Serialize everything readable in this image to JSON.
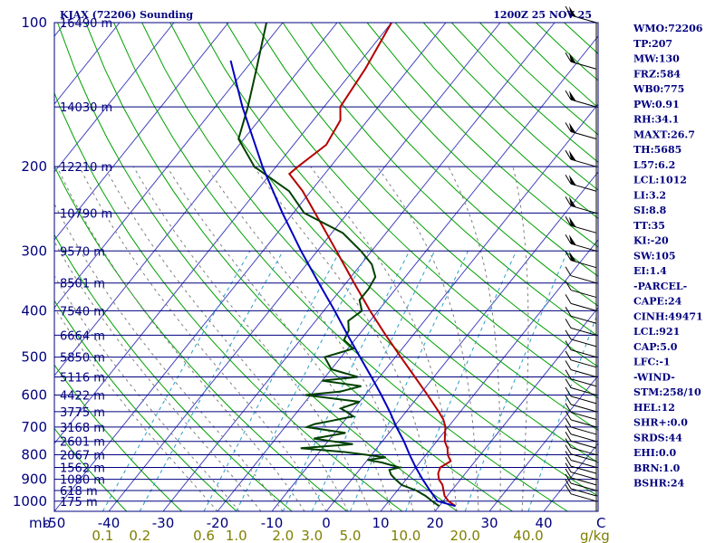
{
  "header": {
    "title": "KJAX (72206) Sounding",
    "datetime": "1200Z 25 NOV 25"
  },
  "indices": [
    "WMO:72206",
    "TP:207",
    "MW:130",
    "FRZ:584",
    "WB0:775",
    "PW:0.91",
    "RH:34.1",
    "MAXT:26.7",
    "TH:5685",
    "L57:6.2",
    "LCL:1012",
    "LI:3.2",
    "SI:8.8",
    "TT:35",
    "KI:-20",
    "SW:105",
    "EI:1.4",
    "-PARCEL-",
    "CAPE:24",
    "CINH:49471",
    "LCL:921",
    "CAP:5.0",
    "LFC:-1",
    "-WIND-",
    "STM:258/10",
    "HEL:12",
    "SHR+:0.0",
    "SRDS:44",
    "EHI:0.0",
    "BRN:1.0",
    "BSHR:24"
  ],
  "colors": {
    "isobar": "#00007f",
    "isotherm": "#3f3fbf",
    "dry_adiabat": "#00a000",
    "moist_adiabat": "#7f7f7f",
    "mixing_ratio": "#2aa0c8",
    "temperature": "#b40000",
    "dewpoint": "#004000",
    "parcel": "#0000c0",
    "label_navy": "#00007f",
    "label_olive": "#7f7f00"
  },
  "chart_data": {
    "type": "skew-t log-p sounding",
    "pressure_unit_label": "mb",
    "temperature_unit_label": "C",
    "mixing_ratio_unit_label": "g/kg",
    "pressure_ticks": [
      100,
      200,
      300,
      400,
      500,
      600,
      700,
      800,
      900,
      1000
    ],
    "temperature_ticks": [
      -50,
      -40,
      -30,
      -20,
      -10,
      0,
      10,
      20,
      30,
      40
    ],
    "temperature_tick_labels": [
      "-50",
      "-40",
      "-30",
      "-20",
      "-10",
      "0",
      "10",
      "20",
      "30",
      "40"
    ],
    "mixing_ratio_ticks": [
      "0.1",
      "0.2",
      "0.6",
      "1.0",
      "2.0",
      "3.0",
      "5.0",
      "10.0",
      "20.0",
      "40.0"
    ],
    "xlim": [
      -50,
      50
    ],
    "ylim": [
      1050,
      100
    ],
    "height_labels": [
      {
        "p": 100,
        "label": "16490 m"
      },
      {
        "p": 150,
        "label": "14030 m"
      },
      {
        "p": 200,
        "label": "12210 m"
      },
      {
        "p": 250,
        "label": "10790 m"
      },
      {
        "p": 300,
        "label": "9570 m"
      },
      {
        "p": 350,
        "label": "8501 m"
      },
      {
        "p": 400,
        "label": "7540 m"
      },
      {
        "p": 450,
        "label": "6664 m"
      },
      {
        "p": 500,
        "label": "5850 m"
      },
      {
        "p": 550,
        "label": "5116 m"
      },
      {
        "p": 600,
        "label": "4422 m"
      },
      {
        "p": 650,
        "label": "3775 m"
      },
      {
        "p": 700,
        "label": "3168 m"
      },
      {
        "p": 750,
        "label": "2601 m"
      },
      {
        "p": 800,
        "label": "2067 m"
      },
      {
        "p": 850,
        "label": "1562 m"
      },
      {
        "p": 900,
        "label": "1080 m"
      },
      {
        "p": 950,
        "label": "618 m"
      },
      {
        "p": 1000,
        "label": "175 m"
      }
    ],
    "series": [
      {
        "type": "temperature",
        "points": [
          [
            1024,
            23.0
          ],
          [
            1000,
            21.0
          ],
          [
            975,
            19.5
          ],
          [
            950,
            18.5
          ],
          [
            925,
            17.5
          ],
          [
            900,
            16.0
          ],
          [
            875,
            15.0
          ],
          [
            850,
            14.5
          ],
          [
            825,
            15.5
          ],
          [
            800,
            14.0
          ],
          [
            775,
            13.0
          ],
          [
            750,
            11.5
          ],
          [
            725,
            10.5
          ],
          [
            700,
            9.5
          ],
          [
            675,
            8.0
          ],
          [
            650,
            6.0
          ],
          [
            600,
            1.5
          ],
          [
            550,
            -3.5
          ],
          [
            500,
            -9.0
          ],
          [
            450,
            -15.0
          ],
          [
            400,
            -21.5
          ],
          [
            350,
            -28.5
          ],
          [
            300,
            -36.5
          ],
          [
            275,
            -41.0
          ],
          [
            250,
            -46.0
          ],
          [
            225,
            -51.5
          ],
          [
            207,
            -56.5
          ],
          [
            200,
            -56.0
          ],
          [
            180,
            -54.0
          ],
          [
            160,
            -55.0
          ],
          [
            150,
            -57.0
          ],
          [
            125,
            -58.0
          ],
          [
            100,
            -60.0
          ]
        ]
      },
      {
        "type": "dewpoint",
        "points": [
          [
            1024,
            20.0
          ],
          [
            1000,
            18.0
          ],
          [
            975,
            16.0
          ],
          [
            950,
            13.5
          ],
          [
            925,
            10.0
          ],
          [
            900,
            8.0
          ],
          [
            880,
            6.5
          ],
          [
            860,
            5.5
          ],
          [
            850,
            7.0
          ],
          [
            830,
            3.0
          ],
          [
            820,
            0.0
          ],
          [
            810,
            3.0
          ],
          [
            800,
            -1.0
          ],
          [
            790,
            -5.0
          ],
          [
            775,
            -14.0
          ],
          [
            760,
            -5.0
          ],
          [
            740,
            -13.0
          ],
          [
            720,
            -8.0
          ],
          [
            700,
            -16.0
          ],
          [
            690,
            -15.0
          ],
          [
            680,
            -12.5
          ],
          [
            665,
            -9.0
          ],
          [
            650,
            -11.0
          ],
          [
            640,
            -12.5
          ],
          [
            620,
            -10.0
          ],
          [
            600,
            -21.0
          ],
          [
            590,
            -15.0
          ],
          [
            575,
            -12.0
          ],
          [
            560,
            -20.0
          ],
          [
            550,
            -14.0
          ],
          [
            530,
            -20.0
          ],
          [
            500,
            -23.0
          ],
          [
            480,
            -19.0
          ],
          [
            460,
            -22.0
          ],
          [
            440,
            -22.5
          ],
          [
            420,
            -24.0
          ],
          [
            400,
            -23.0
          ],
          [
            380,
            -25.0
          ],
          [
            360,
            -25.0
          ],
          [
            340,
            -25.5
          ],
          [
            320,
            -28.0
          ],
          [
            300,
            -32.0
          ],
          [
            275,
            -38.0
          ],
          [
            250,
            -48.0
          ],
          [
            225,
            -54.0
          ],
          [
            200,
            -64.0
          ],
          [
            175,
            -71.0
          ],
          [
            150,
            -74.0
          ],
          [
            125,
            -78.0
          ],
          [
            100,
            -83.0
          ]
        ]
      },
      {
        "type": "parcel",
        "points": [
          [
            1024,
            23.0
          ],
          [
            1000,
            19.0
          ],
          [
            950,
            16.0
          ],
          [
            900,
            13.0
          ],
          [
            850,
            10.0
          ],
          [
            800,
            7.0
          ],
          [
            750,
            4.0
          ],
          [
            700,
            0.5
          ],
          [
            650,
            -3.0
          ],
          [
            600,
            -7.0
          ],
          [
            550,
            -11.5
          ],
          [
            500,
            -16.5
          ],
          [
            450,
            -22.0
          ],
          [
            400,
            -28.0
          ],
          [
            350,
            -35.0
          ],
          [
            300,
            -43.0
          ],
          [
            250,
            -52.0
          ],
          [
            200,
            -62.5
          ],
          [
            150,
            -75.0
          ],
          [
            120,
            -84.0
          ]
        ]
      }
    ],
    "wind_barbs": true,
    "grid": true
  }
}
